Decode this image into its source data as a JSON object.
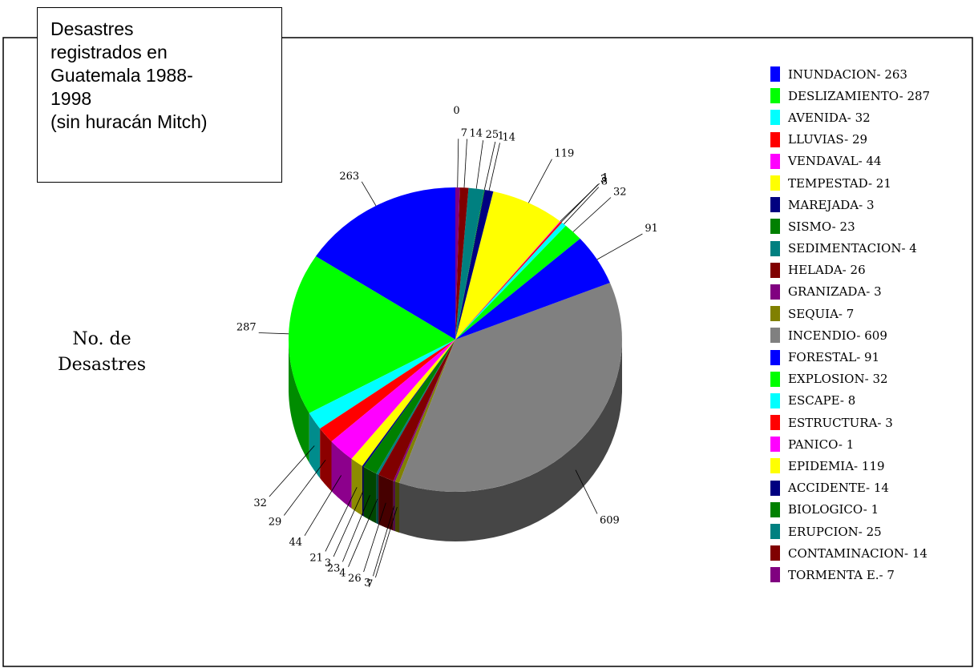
{
  "chart_data": {
    "type": "pie",
    "title": "Desastres registrados en Guatemala 1988-1998 (sin huracán Mitch)",
    "title_lines": [
      "Desastres",
      "registrados en",
      "Guatemala 1988-",
      "1998",
      "(sin huracán Mitch)"
    ],
    "ylabel_lines": [
      "No. de",
      "Desastres"
    ],
    "legend_position": "right",
    "series": [
      {
        "name": "No. de Desastres",
        "values": [
          263,
          287,
          32,
          29,
          44,
          21,
          3,
          23,
          4,
          26,
          3,
          7,
          609,
          91,
          32,
          8,
          3,
          1,
          119,
          14,
          1,
          25,
          14,
          7
        ]
      }
    ],
    "slices": [
      {
        "legend": "INUNDACION- 263",
        "value": 263,
        "color": "#0000ff",
        "label": "263"
      },
      {
        "legend": "DESLIZAMIENTO- 287",
        "value": 287,
        "color": "#00ff00",
        "label": "287"
      },
      {
        "legend": "AVENIDA- 32",
        "value": 32,
        "color": "#00ffff",
        "label": "32"
      },
      {
        "legend": "LLUVIAS- 29",
        "value": 29,
        "color": "#ff0000",
        "label": "29"
      },
      {
        "legend": "VENDAVAL- 44",
        "value": 44,
        "color": "#ff00ff",
        "label": "44"
      },
      {
        "legend": "TEMPESTAD- 21",
        "value": 21,
        "color": "#ffff00",
        "label": "21"
      },
      {
        "legend": "MAREJADA- 3",
        "value": 3,
        "color": "#000080",
        "label": "3"
      },
      {
        "legend": "SISMO- 23",
        "value": 23,
        "color": "#008000",
        "label": "23"
      },
      {
        "legend": "SEDIMENTACION- 4",
        "value": 4,
        "color": "#008080",
        "label": "4"
      },
      {
        "legend": "HELADA- 26",
        "value": 26,
        "color": "#800000",
        "label": "26"
      },
      {
        "legend": "GRANIZADA- 3",
        "value": 3,
        "color": "#800080",
        "label": "3"
      },
      {
        "legend": "SEQUIA- 7",
        "value": 7,
        "color": "#808000",
        "label": "7"
      },
      {
        "legend": "INCENDIO- 609",
        "value": 609,
        "color": "#808080",
        "label": "609"
      },
      {
        "legend": "FORESTAL- 91",
        "value": 91,
        "color": "#0000ff",
        "label": "91"
      },
      {
        "legend": "EXPLOSION- 32",
        "value": 32,
        "color": "#00ff00",
        "label": "32"
      },
      {
        "legend": "ESCAPE- 8",
        "value": 8,
        "color": "#00ffff",
        "label": "8"
      },
      {
        "legend": "ESTRUCTURA- 3",
        "value": 3,
        "color": "#ff0000",
        "label": "3"
      },
      {
        "legend": "PANICO- 1",
        "value": 1,
        "color": "#ff00ff",
        "label": "1"
      },
      {
        "legend": "EPIDEMIA- 119",
        "value": 119,
        "color": "#ffff00",
        "label": "119"
      },
      {
        "legend": "ACCIDENTE- 14",
        "value": 14,
        "color": "#000080",
        "label": "14"
      },
      {
        "legend": "BIOLOGICO- 1",
        "value": 1,
        "color": "#008000",
        "label": "1"
      },
      {
        "legend": "ERUPCION- 25",
        "value": 25,
        "color": "#008080",
        "label": "25"
      },
      {
        "legend": "CONTAMINACION- 14",
        "value": 14,
        "color": "#800000",
        "label": "14"
      },
      {
        "legend": "TORMENTA E.- 7",
        "value": 7,
        "color": "#800080",
        "label": "7"
      }
    ],
    "extra_labels": [
      "0"
    ]
  }
}
